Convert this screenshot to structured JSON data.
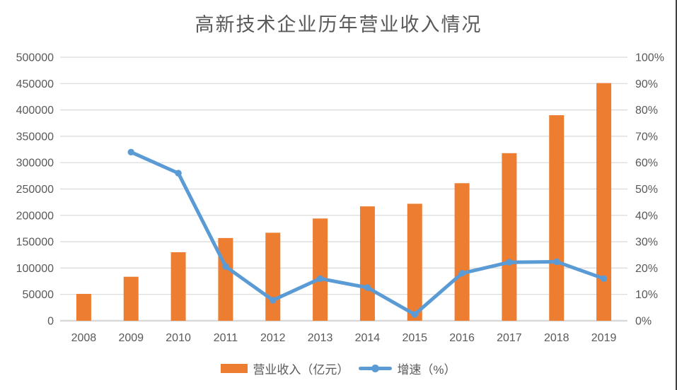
{
  "title": "高新技术企业历年营业收入情况",
  "colors": {
    "bar": "#ED7D31",
    "line": "#5B9BD5",
    "grid": "#D9D9D9",
    "baseline": "#D9D9D9",
    "axis_text": "#595959",
    "title_text": "#595959",
    "border": "#404040",
    "background": "#FFFFFF"
  },
  "legend": [
    {
      "label": "营业收入（亿元）",
      "type": "bar"
    },
    {
      "label": "增速（%）",
      "type": "line"
    }
  ],
  "chart_data": {
    "type": "combo-bar-line",
    "title": "高新技术企业历年营业收入情况",
    "xlabel": "",
    "ylabel_left": "",
    "ylabel_right": "",
    "grid": true,
    "legend_position": "bottom",
    "categories": [
      "2008",
      "2009",
      "2010",
      "2011",
      "2012",
      "2013",
      "2014",
      "2015",
      "2016",
      "2017",
      "2018",
      "2019"
    ],
    "series": [
      {
        "name": "营业收入（亿元）",
        "type": "bar",
        "axis": "left",
        "values": [
          51000,
          83500,
          130000,
          157000,
          167000,
          194000,
          217000,
          222000,
          261000,
          318000,
          390000,
          451000
        ]
      },
      {
        "name": "增速（%）",
        "type": "line",
        "axis": "right",
        "values": [
          null,
          64,
          56,
          20.6,
          7.8,
          16,
          12.6,
          2.4,
          18,
          22.2,
          22.4,
          16
        ]
      }
    ],
    "left_axis": {
      "min": 0,
      "max": 500000,
      "step": 50000,
      "ticks": [
        "0",
        "50000",
        "100000",
        "150000",
        "200000",
        "250000",
        "300000",
        "350000",
        "400000",
        "450000",
        "500000"
      ]
    },
    "right_axis": {
      "min": 0,
      "max": 100,
      "step": 10,
      "suffix": "%",
      "ticks": [
        "0%",
        "10%",
        "20%",
        "30%",
        "40%",
        "50%",
        "60%",
        "70%",
        "80%",
        "90%",
        "100%"
      ]
    }
  }
}
